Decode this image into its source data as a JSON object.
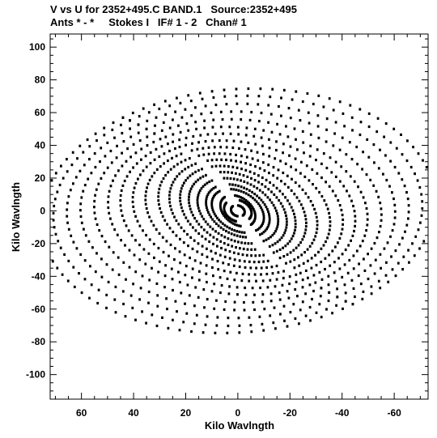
{
  "chart_data": {
    "type": "scatter",
    "title": "V vs U for 2352+495.C BAND.1   Source:2352+495",
    "subtitle": "Ants * - *     Stokes I   IF# 1 - 2   Chan# 1",
    "xlabel": "Kilo Wavlngth",
    "ylabel": "Kilo Wavlngth",
    "xlim": [
      72,
      -73
    ],
    "ylim": [
      -115,
      108
    ],
    "x_inverted": true,
    "x_ticks": [
      60,
      40,
      20,
      0,
      -20,
      -40,
      -60
    ],
    "y_ticks": [
      100,
      80,
      60,
      40,
      20,
      0,
      -20,
      -40,
      -60,
      -80,
      -100
    ],
    "x_tick_labels": [
      "60",
      "40",
      "20",
      "0",
      "-20",
      "-40",
      "-60"
    ],
    "y_tick_labels": [
      "100",
      "80",
      "60",
      "40",
      "20",
      "0",
      "-20",
      "-40",
      "-60",
      "-80",
      "-100"
    ],
    "grid": false,
    "legend": "none",
    "point_color": "#000000",
    "uv_tracks": [
      {
        "u_ext": 3.5,
        "v_ext": 2.5,
        "tilt_deg": 70,
        "t_start_deg": 30,
        "t_end_deg": 160,
        "points": 12
      },
      {
        "u_ext": 7,
        "v_ext": 5,
        "tilt_deg": 70,
        "t_start_deg": 35,
        "t_end_deg": 150,
        "points": 20
      },
      {
        "u_ext": 10,
        "v_ext": 6,
        "tilt_deg": 68,
        "t_start_deg": 25,
        "t_end_deg": 165,
        "points": 24
      },
      {
        "u_ext": 14,
        "v_ext": 9,
        "tilt_deg": 66,
        "t_start_deg": 20,
        "t_end_deg": 170,
        "points": 28
      },
      {
        "u_ext": 17,
        "v_ext": 11,
        "tilt_deg": 66,
        "t_start_deg": 20,
        "t_end_deg": 170,
        "points": 30
      },
      {
        "u_ext": 21,
        "v_ext": 14,
        "tilt_deg": 65,
        "t_start_deg": 15,
        "t_end_deg": 175,
        "points": 34
      },
      {
        "u_ext": 25,
        "v_ext": 17,
        "tilt_deg": 64,
        "t_start_deg": 15,
        "t_end_deg": 175,
        "points": 36
      },
      {
        "u_ext": 29,
        "v_ext": 20,
        "tilt_deg": 63,
        "t_start_deg": 10,
        "t_end_deg": 178,
        "points": 40
      },
      {
        "u_ext": 33,
        "v_ext": 24,
        "tilt_deg": 62,
        "t_start_deg": 10,
        "t_end_deg": 178,
        "points": 42
      },
      {
        "u_ext": 37,
        "v_ext": 28,
        "tilt_deg": 60,
        "t_start_deg": 8,
        "t_end_deg": 180,
        "points": 44
      },
      {
        "u_ext": 41,
        "v_ext": 33,
        "tilt_deg": 58,
        "t_start_deg": 8,
        "t_end_deg": 180,
        "points": 46
      },
      {
        "u_ext": 45,
        "v_ext": 38,
        "tilt_deg": 56,
        "t_start_deg": 5,
        "t_end_deg": 182,
        "points": 46
      },
      {
        "u_ext": 49,
        "v_ext": 43,
        "tilt_deg": 55,
        "t_start_deg": 5,
        "t_end_deg": 182,
        "points": 48
      },
      {
        "u_ext": 53,
        "v_ext": 48,
        "tilt_deg": 54,
        "t_start_deg": 5,
        "t_end_deg": 182,
        "points": 48
      },
      {
        "u_ext": 57,
        "v_ext": 54,
        "tilt_deg": 53,
        "t_start_deg": 3,
        "t_end_deg": 183,
        "points": 50
      },
      {
        "u_ext": 61,
        "v_ext": 60,
        "tilt_deg": 52,
        "t_start_deg": 3,
        "t_end_deg": 183,
        "points": 50
      },
      {
        "u_ext": 65,
        "v_ext": 66,
        "tilt_deg": 51,
        "t_start_deg": 3,
        "t_end_deg": 183,
        "points": 52
      },
      {
        "u_ext": 69,
        "v_ext": 72,
        "tilt_deg": 50,
        "t_start_deg": 3,
        "t_end_deg": 183,
        "points": 52
      },
      {
        "u_ext": 72,
        "v_ext": 78,
        "tilt_deg": 49,
        "t_start_deg": 3,
        "t_end_deg": 183,
        "points": 52
      }
    ]
  }
}
